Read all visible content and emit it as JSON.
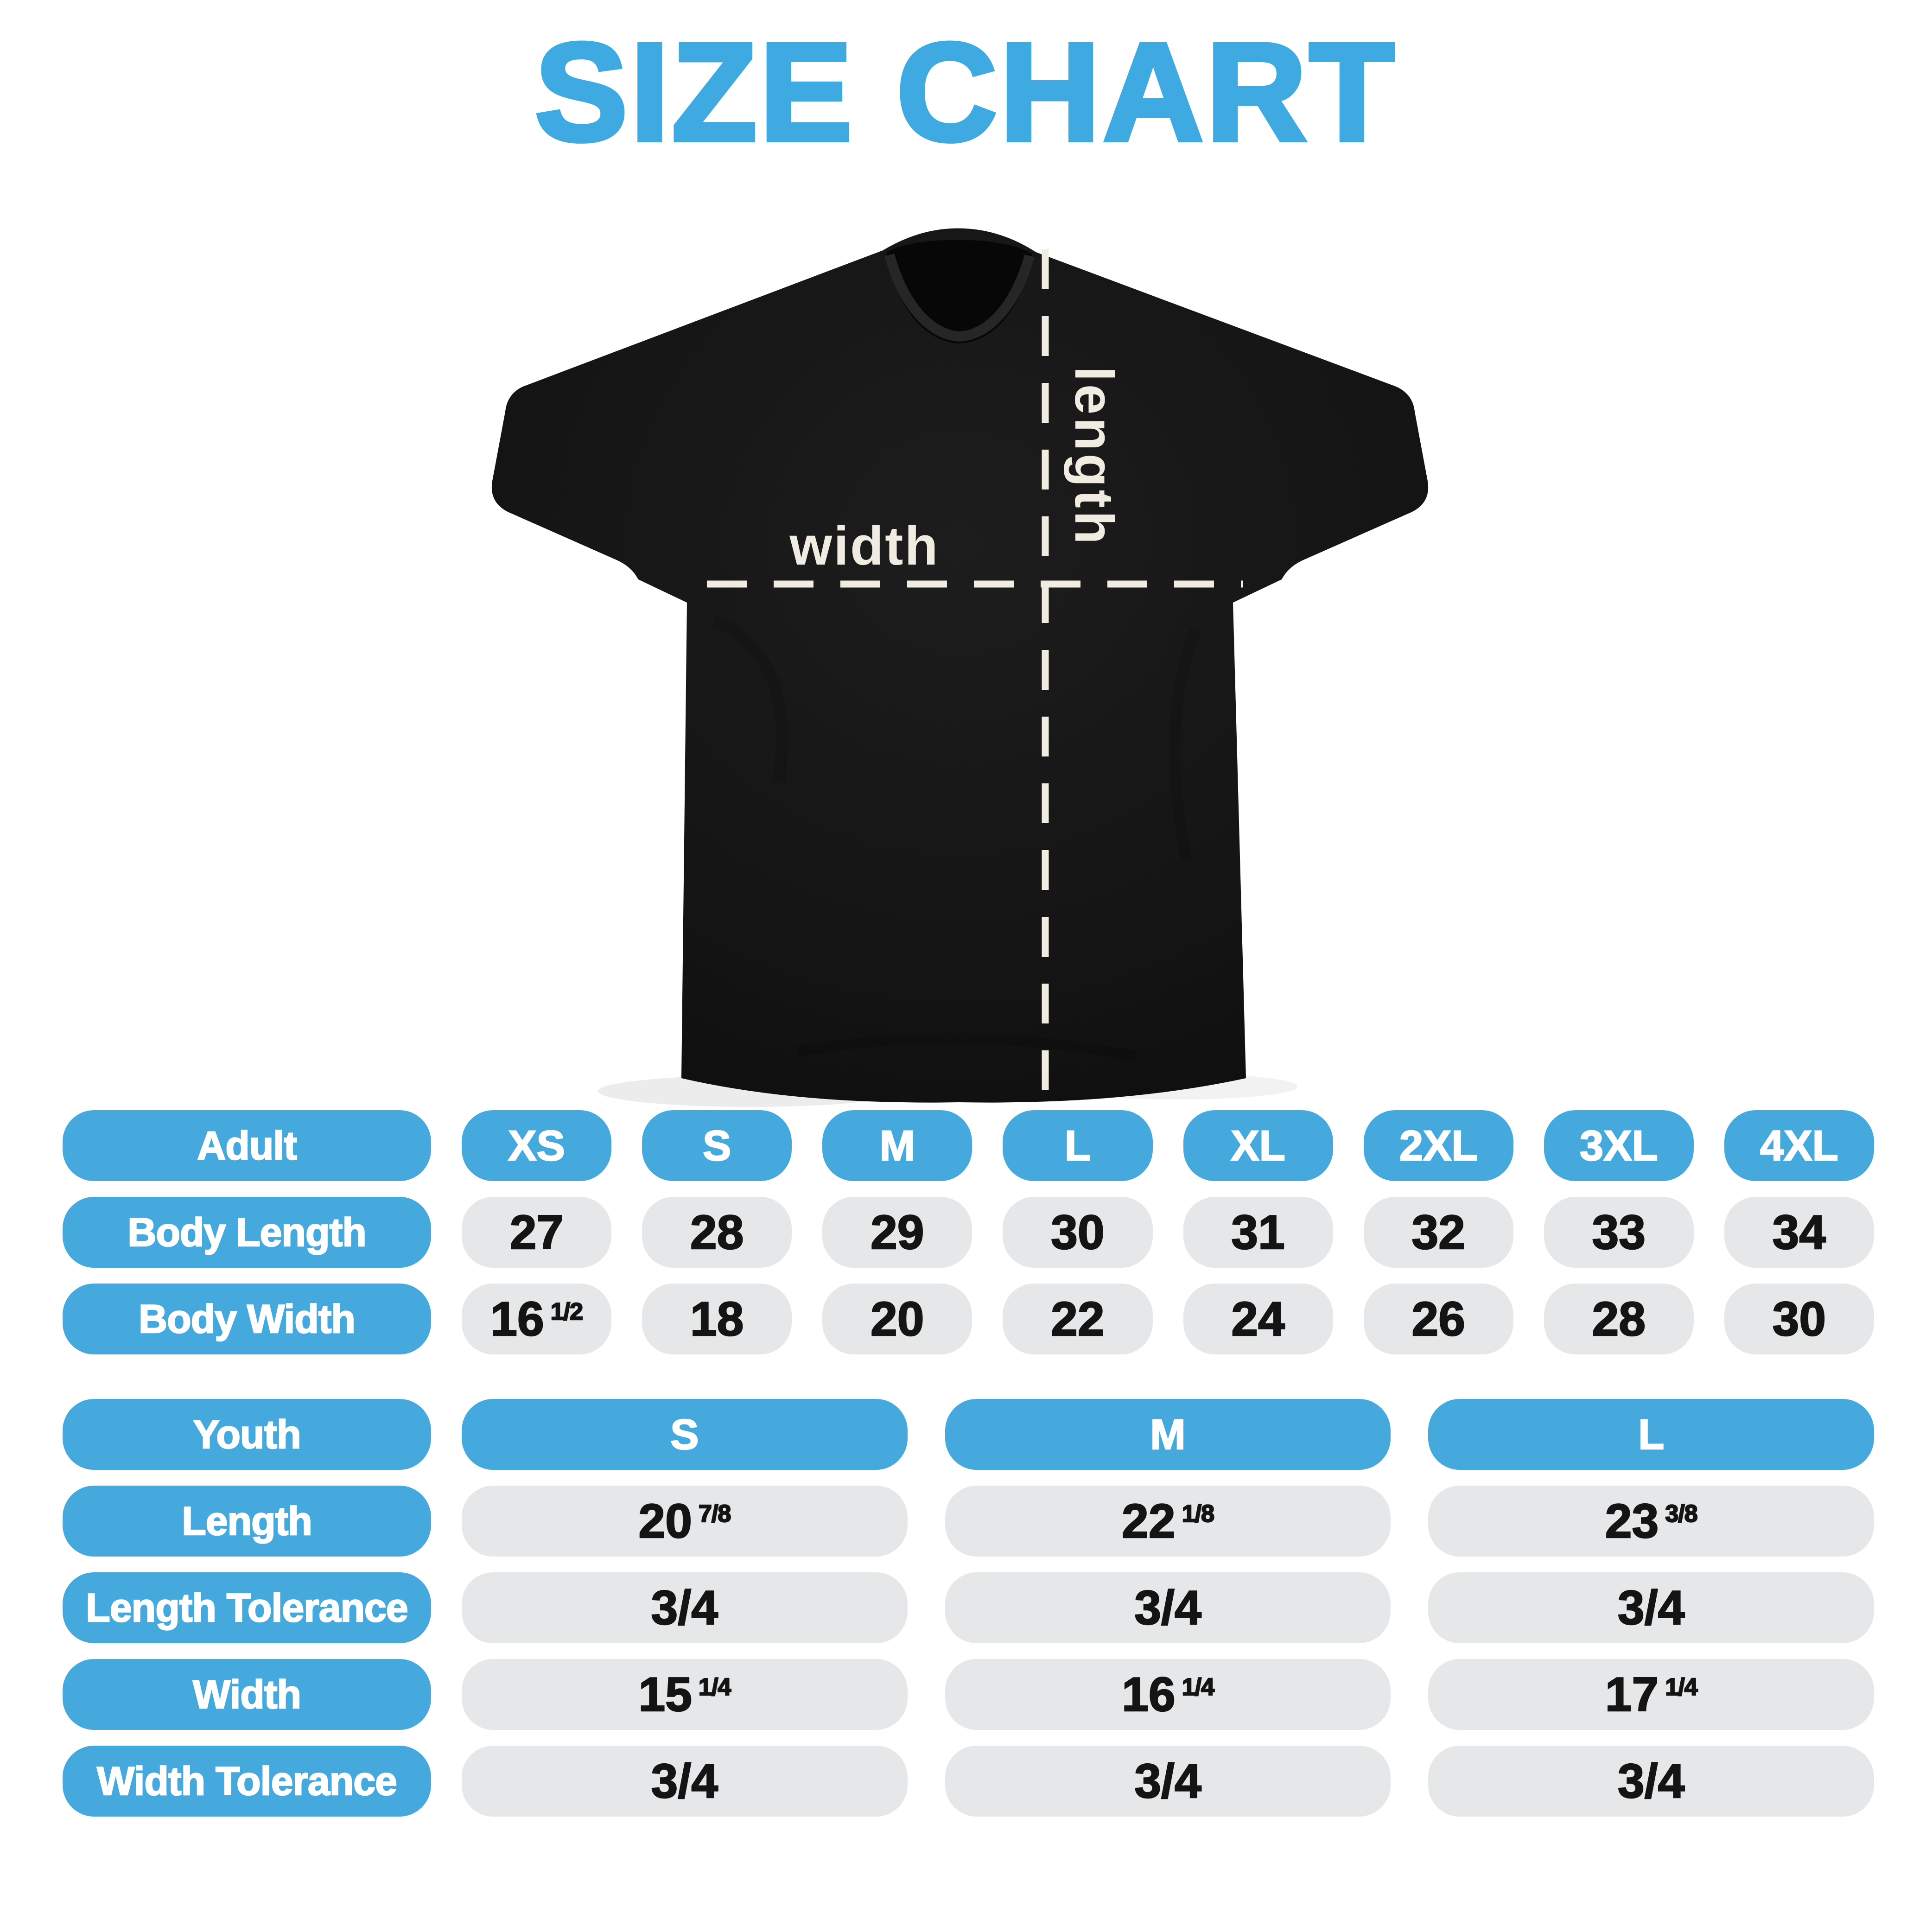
{
  "title": "SIZE CHART",
  "shirt": {
    "width_label": "width",
    "length_label": "length"
  },
  "adult": {
    "header": "Adult",
    "sizes": [
      "XS",
      "S",
      "M",
      "L",
      "XL",
      "2XL",
      "3XL",
      "4XL"
    ],
    "rows": [
      {
        "label": "Body Length",
        "values": [
          {
            "main": "27"
          },
          {
            "main": "28"
          },
          {
            "main": "29"
          },
          {
            "main": "30"
          },
          {
            "main": "31"
          },
          {
            "main": "32"
          },
          {
            "main": "33"
          },
          {
            "main": "34"
          }
        ]
      },
      {
        "label": "Body Width",
        "values": [
          {
            "main": "16",
            "frac": "1/2"
          },
          {
            "main": "18"
          },
          {
            "main": "20"
          },
          {
            "main": "22"
          },
          {
            "main": "24"
          },
          {
            "main": "26"
          },
          {
            "main": "28"
          },
          {
            "main": "30"
          }
        ]
      }
    ]
  },
  "youth": {
    "header": "Youth",
    "sizes": [
      "S",
      "M",
      "L"
    ],
    "rows": [
      {
        "label": "Length",
        "values": [
          {
            "main": "20",
            "frac": "7/8"
          },
          {
            "main": "22",
            "frac": "1/8"
          },
          {
            "main": "23",
            "frac": "3/8"
          }
        ]
      },
      {
        "label": "Length Tolerance",
        "values": [
          {
            "main": "3/4"
          },
          {
            "main": "3/4"
          },
          {
            "main": "3/4"
          }
        ]
      },
      {
        "label": "Width",
        "values": [
          {
            "main": "15",
            "frac": "1/4"
          },
          {
            "main": "16",
            "frac": "1/4"
          },
          {
            "main": "17",
            "frac": "1/4"
          }
        ]
      },
      {
        "label": "Width Tolerance",
        "values": [
          {
            "main": "3/4"
          },
          {
            "main": "3/4"
          },
          {
            "main": "3/4"
          }
        ]
      }
    ]
  },
  "colors": {
    "accent_blue": "#45A9DE",
    "title_blue": "#3FA9E1",
    "pill_gray": "#E6E7E8",
    "shirt_black": "#141414",
    "label_cream": "#F1ECE2"
  }
}
